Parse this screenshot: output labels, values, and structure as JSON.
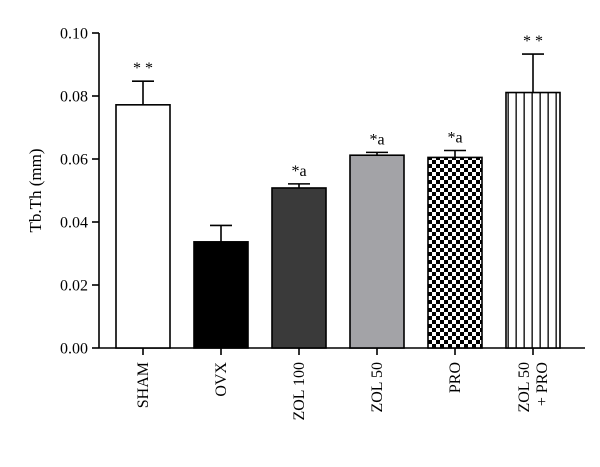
{
  "chart_data": {
    "type": "bar",
    "title": "",
    "xlabel": "",
    "ylabel": "Tb.Th (mm)",
    "ylim": [
      0,
      0.1
    ],
    "yticks": [
      "0.00",
      "0.02",
      "0.04",
      "0.06",
      "0.08",
      "0.10"
    ],
    "grid": false,
    "categories": [
      {
        "lines": [
          "SHAM"
        ]
      },
      {
        "lines": [
          "OVX"
        ]
      },
      {
        "lines": [
          "ZOL 100"
        ]
      },
      {
        "lines": [
          "ZOL 50"
        ]
      },
      {
        "lines": [
          "PRO"
        ]
      },
      {
        "lines": [
          "ZOL 50",
          "+ PRO"
        ]
      }
    ],
    "values": [
      0.0772,
      0.0337,
      0.0508,
      0.0612,
      0.0605,
      0.0811
    ],
    "errors": [
      0.0075,
      0.0052,
      0.0013,
      0.0009,
      0.0022,
      0.0122
    ],
    "annotations": [
      "* *",
      "",
      "*a",
      "*a",
      "*a",
      "* *"
    ],
    "fills": [
      "white",
      "black",
      "dark-gray",
      "light-gray",
      "checkerboard",
      "vertical-stripes"
    ],
    "colors": {
      "dark-gray": "#3a3a3a",
      "light-gray": "#a3a3a7",
      "black": "#000000",
      "white": "#ffffff"
    }
  }
}
